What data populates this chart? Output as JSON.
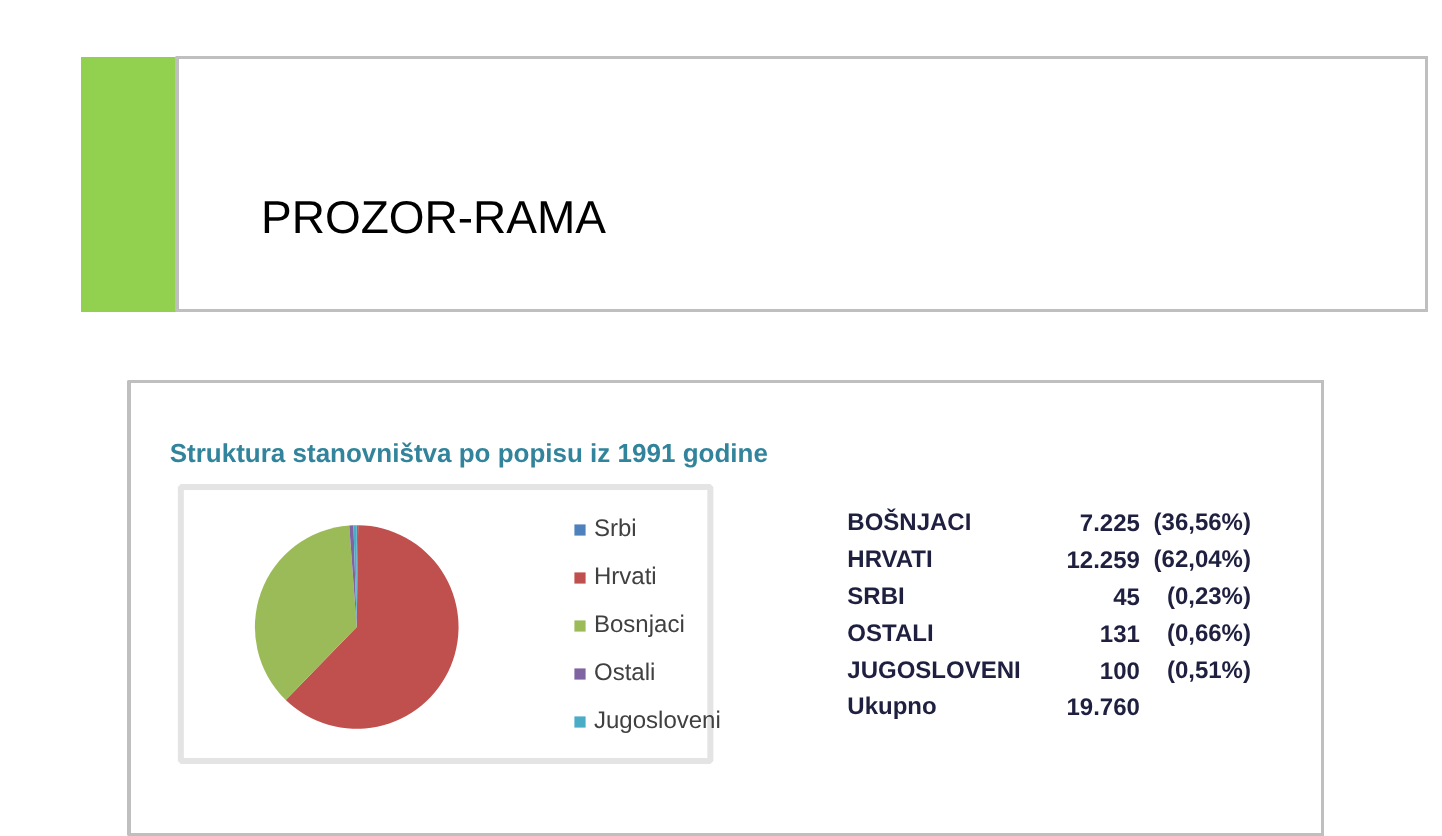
{
  "chart_data": [
    {
      "type": "other",
      "title": "PROZOR-RAMA"
    },
    {
      "type": "pie",
      "title": "Struktura stanovništva po popisu iz 1991 godine",
      "categories": [
        "Srbi",
        "Hrvati",
        "Bosnjaci",
        "Ostali",
        "Jugosloveni"
      ],
      "values": [
        0.23,
        62.04,
        36.56,
        0.66,
        0.51
      ],
      "colors": [
        "#4f81bd",
        "#c0504d",
        "#9bbb59",
        "#8064a2",
        "#4bacc6"
      ],
      "legend": "right"
    },
    {
      "type": "other",
      "y_categories": [
        "BOŠNJACI",
        "HRVATI",
        "SRBI",
        "OSTALI",
        "JUGOSLOVENI",
        "Ukupno"
      ],
      "cell_labels": [
        [
          "7.225",
          "(36,56%)"
        ],
        [
          "12.259",
          "(62,04%)"
        ],
        [
          "45",
          "(0,23%)"
        ],
        [
          "131",
          "(0,66%)"
        ],
        [
          "100",
          "(0,51%)"
        ],
        [
          "19.760",
          null
        ]
      ]
    }
  ]
}
